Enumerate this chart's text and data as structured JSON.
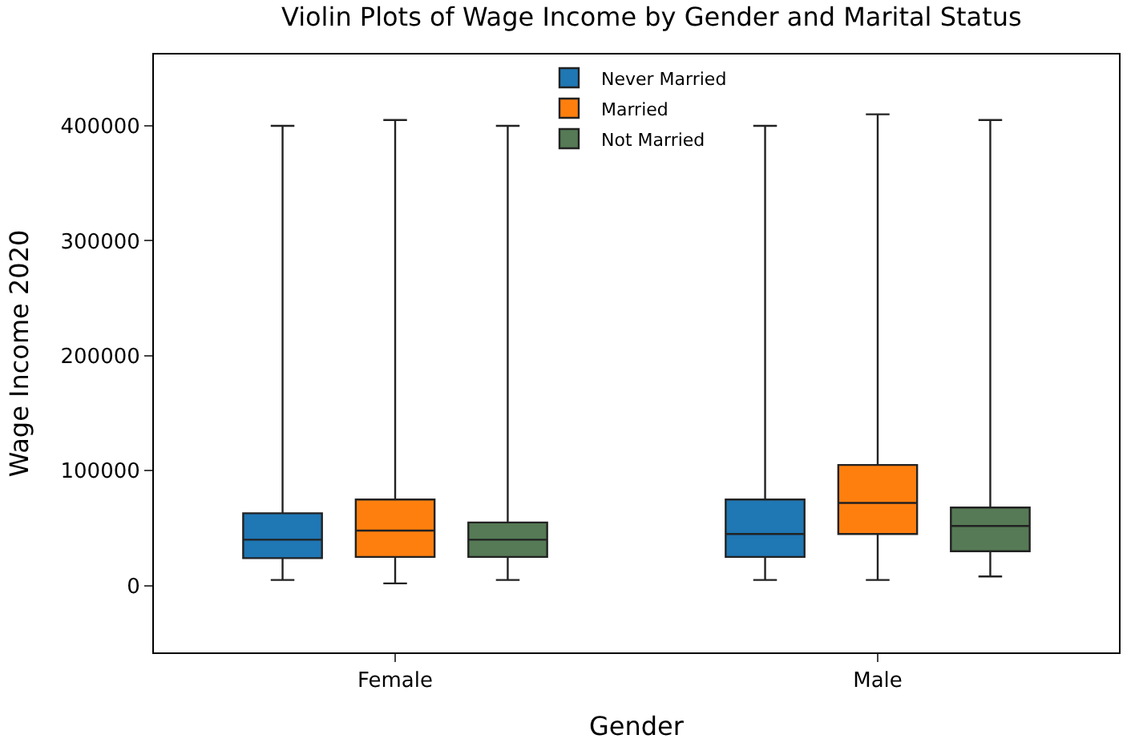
{
  "chart_data": {
    "type": "box",
    "title": "Violin Plots of Wage Income by Gender and Marital Status",
    "xlabel": "Gender",
    "ylabel": "Wage Income 2020",
    "categories": [
      "Female",
      "Male"
    ],
    "series": [
      {
        "name": "Never Married",
        "color": "#1f77b4",
        "boxes": [
          {
            "low": 5000,
            "q1": 24000,
            "median": 40000,
            "q3": 63000,
            "high": 400000
          },
          {
            "low": 5000,
            "q1": 25000,
            "median": 45000,
            "q3": 75000,
            "high": 400000
          }
        ]
      },
      {
        "name": "Married",
        "color": "#ff7f0e",
        "boxes": [
          {
            "low": 2000,
            "q1": 25000,
            "median": 48000,
            "q3": 75000,
            "high": 405000
          },
          {
            "low": 5000,
            "q1": 45000,
            "median": 72000,
            "q3": 105000,
            "high": 410000
          }
        ]
      },
      {
        "name": "Not Married",
        "color": "#557a55",
        "boxes": [
          {
            "low": 5000,
            "q1": 25000,
            "median": 40000,
            "q3": 55000,
            "high": 400000
          },
          {
            "low": 8000,
            "q1": 30000,
            "median": 52000,
            "q3": 68000,
            "high": 405000
          }
        ]
      }
    ],
    "ylim": [
      -58000,
      462000
    ],
    "yticks": [
      0,
      100000,
      200000,
      300000,
      400000
    ],
    "legend": "top"
  }
}
